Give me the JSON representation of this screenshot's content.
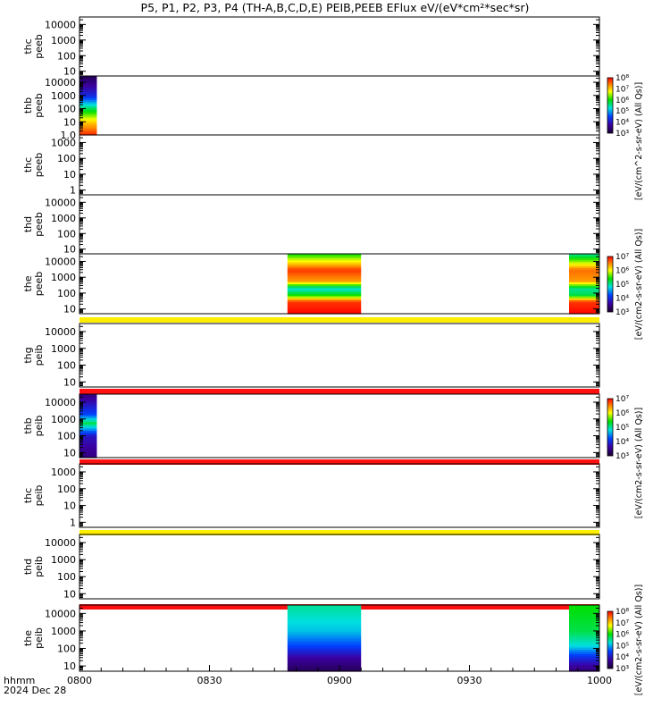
{
  "chart_data": {
    "type": "heatmap",
    "title": "P5, P1, P2, P3, P4 (TH-A,B,C,D,E) PEIB,PEEB EFlux eV/(eV*cm²*sec*sr)",
    "xlabel": "hhmm",
    "date_label": "2024 Dec 28",
    "x_ticks": [
      "0800",
      "0830",
      "0900",
      "0930",
      "1000"
    ],
    "x_range": [
      "08:00",
      "10:00"
    ],
    "y_scale": "log",
    "colormap": "rainbow",
    "panels": [
      {
        "probe": "thc",
        "instrument": "peeb",
        "ylim": [
          5,
          30000
        ],
        "ticks": [
          "10",
          "100",
          "1000",
          "10000"
        ],
        "data": []
      },
      {
        "probe": "thb",
        "instrument": "peeb",
        "ylim": [
          1,
          30000
        ],
        "ticks": [
          "1.0",
          "10",
          "100",
          "1000",
          "10000"
        ],
        "data": [
          {
            "start": "08:00",
            "end": "08:04",
            "profile": [
              [
                1,
                0.97
              ],
              [
                10,
                0.8
              ],
              [
                100,
                0.55
              ],
              [
                1000,
                0.25
              ],
              [
                30000,
                0.05
              ]
            ]
          }
        ]
      },
      {
        "probe": "thc",
        "instrument": "peeb",
        "ylim": [
          0.5,
          3000
        ],
        "ticks": [
          "1",
          "10",
          "100",
          "1000"
        ],
        "data": []
      },
      {
        "probe": "thd",
        "instrument": "peeb",
        "ylim": [
          5,
          30000
        ],
        "ticks": [
          "10",
          "100",
          "1000",
          "10000"
        ],
        "data": []
      },
      {
        "probe": "the",
        "instrument": "peeb",
        "ylim": [
          5,
          30000
        ],
        "ticks": [
          "10",
          "100",
          "1000",
          "10000"
        ],
        "data": [
          {
            "start": "08:48",
            "end": "09:05",
            "profile": [
              [
                5,
                1.0
              ],
              [
                30,
                0.95
              ],
              [
                80,
                0.6
              ],
              [
                200,
                0.45
              ],
              [
                600,
                0.85
              ],
              [
                3000,
                0.95
              ],
              [
                30000,
                0.6
              ]
            ]
          },
          {
            "start": "09:53",
            "end": "10:00",
            "profile": [
              [
                5,
                1.0
              ],
              [
                30,
                0.95
              ],
              [
                80,
                0.55
              ],
              [
                200,
                0.5
              ],
              [
                600,
                0.85
              ],
              [
                3000,
                0.9
              ],
              [
                30000,
                0.5
              ]
            ]
          }
        ]
      },
      {
        "probe": "thg",
        "instrument": "peib",
        "ylim": [
          5,
          30000
        ],
        "ticks": [
          "10",
          "100",
          "1000",
          "10000"
        ],
        "data": [],
        "top_bar": "#ffee00"
      },
      {
        "probe": "thb",
        "instrument": "peib",
        "ylim": [
          5,
          30000
        ],
        "ticks": [
          "10",
          "100",
          "1000",
          "10000"
        ],
        "top_bar": "#ff1010",
        "data": [
          {
            "start": "08:00",
            "end": "08:04",
            "profile": [
              [
                5,
                0.1
              ],
              [
                100,
                0.2
              ],
              [
                600,
                0.55
              ],
              [
                2000,
                0.3
              ],
              [
                30000,
                0.1
              ]
            ]
          }
        ]
      },
      {
        "probe": "thc",
        "instrument": "peib",
        "ylim": [
          0.5,
          3000
        ],
        "ticks": [
          "1",
          "10",
          "100",
          "1000"
        ],
        "data": [],
        "top_bar": "#ff1010"
      },
      {
        "probe": "thd",
        "instrument": "peib",
        "ylim": [
          5,
          30000
        ],
        "ticks": [
          "10",
          "100",
          "1000",
          "10000"
        ],
        "data": [],
        "top_bar": "#ffee00"
      },
      {
        "probe": "the",
        "instrument": "peib",
        "ylim": [
          5,
          30000
        ],
        "ticks": [
          "10",
          "100",
          "1000",
          "10000"
        ],
        "top_bar": "#ff1010",
        "data": [
          {
            "start": "08:48",
            "end": "09:05",
            "profile": [
              [
                5,
                0.05
              ],
              [
                30,
                0.15
              ],
              [
                150,
                0.3
              ],
              [
                1000,
                0.42
              ],
              [
                30000,
                0.5
              ]
            ]
          },
          {
            "start": "09:53",
            "end": "10:00",
            "profile": [
              [
                5,
                0.08
              ],
              [
                30,
                0.25
              ],
              [
                150,
                0.45
              ],
              [
                1000,
                0.55
              ],
              [
                30000,
                0.6
              ]
            ]
          }
        ]
      }
    ],
    "colorbars": [
      {
        "label": "[eV/(cm^2-s-sr-eV) (All Qs)]",
        "ticks": [
          "10³",
          "10⁴",
          "10⁵",
          "10⁶",
          "10⁷",
          "10⁸"
        ]
      },
      {
        "label": "[eV/(cm2-s-sr-eV) (All Qs)]",
        "ticks": [
          "10³",
          "10⁴",
          "10⁵",
          "10⁶",
          "10⁷"
        ]
      },
      {
        "label": "[eV/(cm2-s-sr-eV) (All Qs)]",
        "ticks": [
          "10³",
          "10⁴",
          "10⁵",
          "10⁶",
          "10⁷"
        ]
      },
      {
        "label": "[eV/(cm2-s-sr-eV) (All Qs)]",
        "ticks": [
          "10³",
          "10⁴",
          "10⁵",
          "10⁶",
          "10⁷",
          "10⁸"
        ]
      }
    ]
  }
}
